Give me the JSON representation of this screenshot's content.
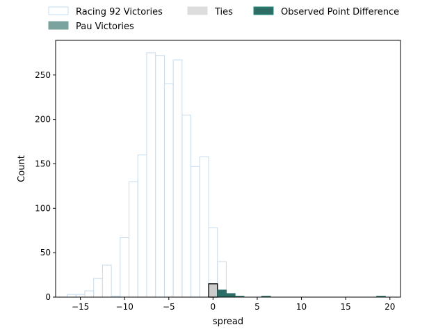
{
  "chart_data": {
    "type": "bar",
    "xlabel": "spread",
    "ylabel": "Count",
    "xlim": [
      -17.8,
      21.2
    ],
    "ylim": [
      0,
      289
    ],
    "xticks": [
      -15,
      -10,
      -5,
      0,
      5,
      10,
      15,
      20
    ],
    "xtick_labels": [
      "−15",
      "−10",
      "−5",
      "0",
      "5",
      "10",
      "15",
      "20"
    ],
    "yticks": [
      0,
      50,
      100,
      150,
      200,
      250
    ],
    "yticks_labels": [
      "0",
      "50",
      "100",
      "150",
      "200",
      "250"
    ],
    "legend": {
      "placement": "top (outside plot)",
      "entries": [
        {
          "label": "Racing 92 Victories",
          "style": "outline",
          "color": "#c6dcef"
        },
        {
          "label": "Ties",
          "style": "fill",
          "color": "#dddddd"
        },
        {
          "label": "Observed Point Difference",
          "style": "fill",
          "color": "#2c6e66"
        },
        {
          "label": "Pau Victories",
          "style": "fill",
          "color": "#7aa39e"
        }
      ]
    },
    "series": [
      {
        "name": "Racing 92 Victories",
        "style": "outline",
        "edge_color": "#c6dcef",
        "fill_color": "#ffffff",
        "bins": [
          {
            "x0": -16.5,
            "x1": -15.5,
            "count": 3
          },
          {
            "x0": -15.5,
            "x1": -14.5,
            "count": 3
          },
          {
            "x0": -14.5,
            "x1": -13.5,
            "count": 7
          },
          {
            "x0": -13.5,
            "x1": -12.5,
            "count": 21
          },
          {
            "x0": -12.5,
            "x1": -11.5,
            "count": 36
          },
          {
            "x0": -11.5,
            "x1": -10.5,
            "count": 1
          },
          {
            "x0": -10.5,
            "x1": -9.5,
            "count": 67
          },
          {
            "x0": -9.5,
            "x1": -8.5,
            "count": 130
          },
          {
            "x0": -8.5,
            "x1": -7.5,
            "count": 160
          },
          {
            "x0": -7.5,
            "x1": -6.5,
            "count": 275
          },
          {
            "x0": -6.5,
            "x1": -5.5,
            "count": 272
          },
          {
            "x0": -5.5,
            "x1": -4.5,
            "count": 240
          },
          {
            "x0": -4.5,
            "x1": -3.5,
            "count": 267
          },
          {
            "x0": -3.5,
            "x1": -2.5,
            "count": 205
          },
          {
            "x0": -2.5,
            "x1": -1.5,
            "count": 147
          },
          {
            "x0": -1.5,
            "x1": -0.5,
            "count": 158
          },
          {
            "x0": -0.5,
            "x1": 0.5,
            "count": 78
          },
          {
            "x0": 0.5,
            "x1": 1.5,
            "count": 40
          }
        ]
      },
      {
        "name": "Ties",
        "style": "fill",
        "edge_color": "#000000",
        "fill_color": "#cccccc",
        "bins": [
          {
            "x0": -0.5,
            "x1": 0.5,
            "count": 15
          }
        ]
      },
      {
        "name": "Pau Victories",
        "style": "fill",
        "edge_color": "#2c6e66",
        "fill_color": "#2c6e66",
        "bins": [
          {
            "x0": 0.5,
            "x1": 1.5,
            "count": 8
          },
          {
            "x0": 1.5,
            "x1": 2.5,
            "count": 4
          },
          {
            "x0": 2.5,
            "x1": 3.5,
            "count": 1
          },
          {
            "x0": 5.5,
            "x1": 6.5,
            "count": 1
          },
          {
            "x0": 18.5,
            "x1": 19.5,
            "count": 1
          }
        ]
      }
    ]
  }
}
